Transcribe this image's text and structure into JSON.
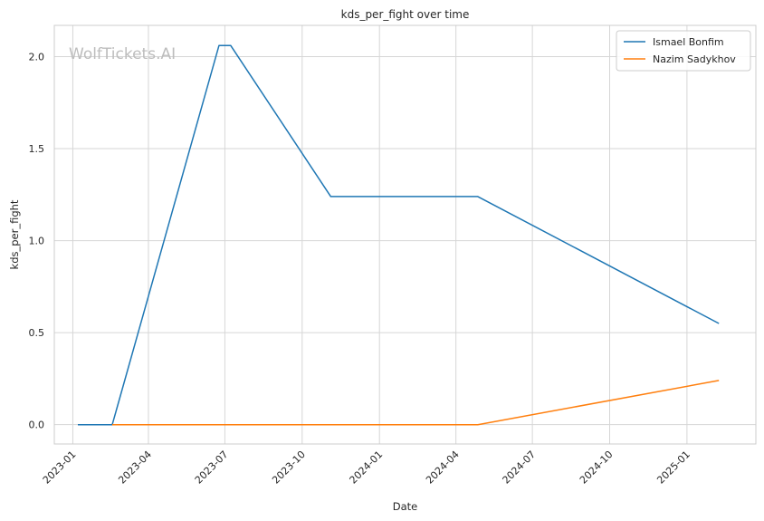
{
  "chart_data": {
    "type": "line",
    "title": "kds_per_fight over time",
    "xlabel": "Date",
    "ylabel": "kds_per_fight",
    "watermark": "WolfTickets.AI",
    "x_axis_type": "date",
    "xlim": [
      "2022-12-10",
      "2025-03-24"
    ],
    "ylim": [
      -0.105,
      2.17
    ],
    "x_ticks": [
      {
        "date": "2023-01-01",
        "label": "2023-01"
      },
      {
        "date": "2023-04-01",
        "label": "2023-04"
      },
      {
        "date": "2023-07-01",
        "label": "2023-07"
      },
      {
        "date": "2023-10-01",
        "label": "2023-10"
      },
      {
        "date": "2024-01-01",
        "label": "2024-01"
      },
      {
        "date": "2024-04-01",
        "label": "2024-04"
      },
      {
        "date": "2024-07-01",
        "label": "2024-07"
      },
      {
        "date": "2024-10-01",
        "label": "2024-10"
      },
      {
        "date": "2025-01-01",
        "label": "2025-01"
      }
    ],
    "y_ticks": [
      {
        "value": 0.0,
        "label": "0.0"
      },
      {
        "value": 0.5,
        "label": "0.5"
      },
      {
        "value": 1.0,
        "label": "1.0"
      },
      {
        "value": 1.5,
        "label": "1.5"
      },
      {
        "value": 2.0,
        "label": "2.0"
      }
    ],
    "grid": true,
    "legend_position": "top-right",
    "series": [
      {
        "name": "Ismael Bonfim",
        "color": "#1f77b4",
        "points": [
          {
            "x": "2023-01-07",
            "y": 0.0
          },
          {
            "x": "2023-02-17",
            "y": 0.0
          },
          {
            "x": "2023-06-24",
            "y": 2.06
          },
          {
            "x": "2023-07-08",
            "y": 2.06
          },
          {
            "x": "2023-11-04",
            "y": 1.24
          },
          {
            "x": "2024-04-27",
            "y": 1.24
          },
          {
            "x": "2025-02-08",
            "y": 0.55
          }
        ]
      },
      {
        "name": "Nazim Sadykhov",
        "color": "#ff7f0e",
        "points": [
          {
            "x": "2023-02-17",
            "y": 0.0
          },
          {
            "x": "2024-04-27",
            "y": 0.0
          },
          {
            "x": "2025-02-08",
            "y": 0.24
          }
        ]
      }
    ]
  }
}
